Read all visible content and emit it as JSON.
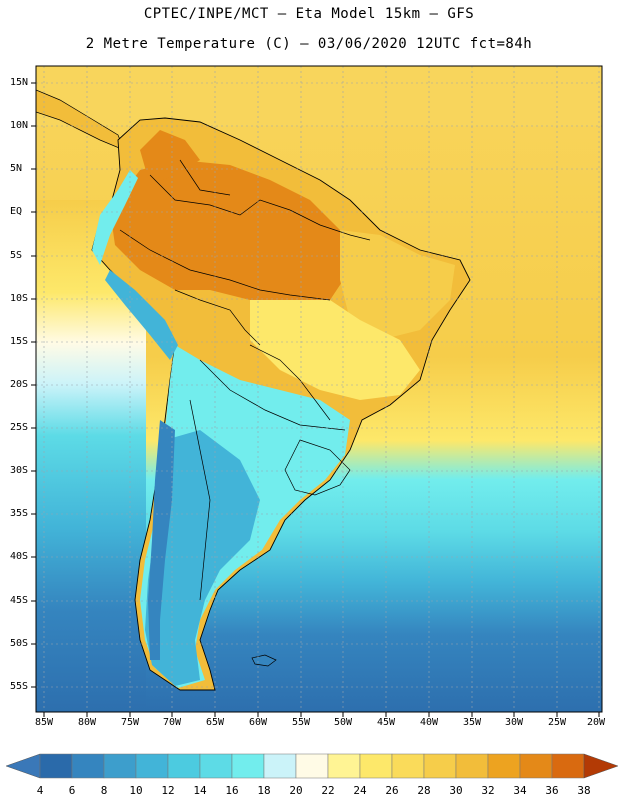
{
  "header": {
    "line1": "CPTEC/INPE/MCT –  Eta Model 15km – GFS",
    "line2": "2 Metre Temperature (C) – 03/06/2020 12UTC fct=84h"
  },
  "axes": {
    "lat_labels": [
      "15N",
      "10N",
      "5N",
      "EQ",
      "5S",
      "10S",
      "15S",
      "20S",
      "25S",
      "30S",
      "35S",
      "40S",
      "45S",
      "50S",
      "55S"
    ],
    "lon_labels": [
      "85W",
      "80W",
      "75W",
      "70W",
      "65W",
      "60W",
      "55W",
      "50W",
      "45W",
      "40W",
      "35W",
      "30W",
      "25W",
      "20W"
    ]
  },
  "colorbar": {
    "labels": [
      "4",
      "6",
      "8",
      "10",
      "12",
      "14",
      "16",
      "18",
      "20",
      "22",
      "24",
      "26",
      "28",
      "30",
      "32",
      "34",
      "36",
      "38"
    ],
    "colors": [
      "#2a6aaa",
      "#3585bf",
      "#3d9ecc",
      "#42b4d8",
      "#4ccbe0",
      "#5ddbe6",
      "#72eded",
      "#cbf3f9",
      "#fffbe6",
      "#fff494",
      "#fde86a",
      "#fadb5a",
      "#f6cd4a",
      "#f2bd3a",
      "#eda320",
      "#e48918",
      "#d96a10",
      "#c74a0a",
      "#b33a05"
    ],
    "low_arrow_color": "#3a78b8",
    "high_arrow_color": "#b33a05"
  },
  "map_colors": {
    "ocean_south": "#2d6fae",
    "ocean_mid": "#42b4d8",
    "ocean_cyan": "#5ddbe6",
    "ocean_north": "#f6cd4a",
    "land_hot": "#e48918",
    "land_warm": "#f2bd3a",
    "land_cool": "#72eded",
    "land_cold": "#42b4d8"
  }
}
